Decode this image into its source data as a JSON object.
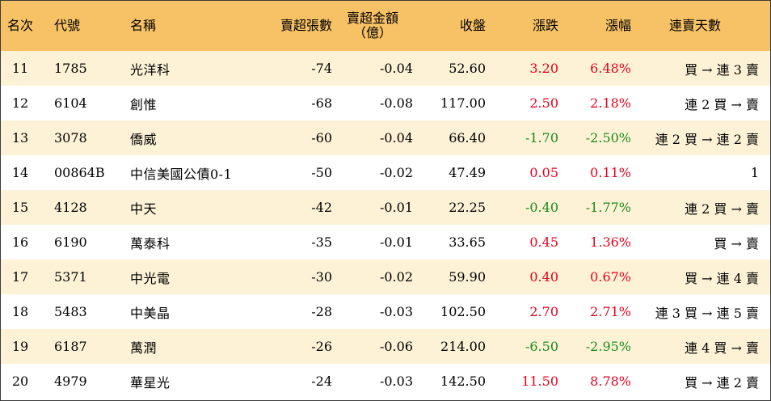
{
  "headers": {
    "rank": "名次",
    "code": "代號",
    "name": "名稱",
    "sell_volume": "賣超張數",
    "sell_amount_line1": "賣超金額",
    "sell_amount_line2": "（億）",
    "close": "收盤",
    "change": "漲跌",
    "change_pct": "漲幅",
    "streak": "連賣天數"
  },
  "colors": {
    "header_bg": "#f7c266",
    "odd_row_bg": "#fdf2d6",
    "up": "#e8001c",
    "down": "#1a8a1a"
  },
  "rows": [
    {
      "rank": "11",
      "code": "1785",
      "name": "光洋科",
      "sell_volume": "-74",
      "sell_amount": "-0.04",
      "close": "52.60",
      "change": "3.20",
      "change_pct": "6.48%",
      "direction": "up",
      "streak": "買 → 連 3 賣"
    },
    {
      "rank": "12",
      "code": "6104",
      "name": "創惟",
      "sell_volume": "-68",
      "sell_amount": "-0.08",
      "close": "117.00",
      "change": "2.50",
      "change_pct": "2.18%",
      "direction": "up",
      "streak": "連 2 買 → 賣"
    },
    {
      "rank": "13",
      "code": "3078",
      "name": "僑威",
      "sell_volume": "-60",
      "sell_amount": "-0.04",
      "close": "66.40",
      "change": "-1.70",
      "change_pct": "-2.50%",
      "direction": "down",
      "streak": "連 2 買 → 連 2 賣"
    },
    {
      "rank": "14",
      "code": "00864B",
      "name": "中信美國公債0-1",
      "sell_volume": "-50",
      "sell_amount": "-0.02",
      "close": "47.49",
      "change": "0.05",
      "change_pct": "0.11%",
      "direction": "up",
      "streak": "1"
    },
    {
      "rank": "15",
      "code": "4128",
      "name": "中天",
      "sell_volume": "-42",
      "sell_amount": "-0.01",
      "close": "22.25",
      "change": "-0.40",
      "change_pct": "-1.77%",
      "direction": "down",
      "streak": "連 2 買 → 賣"
    },
    {
      "rank": "16",
      "code": "6190",
      "name": "萬泰科",
      "sell_volume": "-35",
      "sell_amount": "-0.01",
      "close": "33.65",
      "change": "0.45",
      "change_pct": "1.36%",
      "direction": "up",
      "streak": "買 → 賣"
    },
    {
      "rank": "17",
      "code": "5371",
      "name": "中光電",
      "sell_volume": "-30",
      "sell_amount": "-0.02",
      "close": "59.90",
      "change": "0.40",
      "change_pct": "0.67%",
      "direction": "up",
      "streak": "買 → 連 4 賣"
    },
    {
      "rank": "18",
      "code": "5483",
      "name": "中美晶",
      "sell_volume": "-28",
      "sell_amount": "-0.03",
      "close": "102.50",
      "change": "2.70",
      "change_pct": "2.71%",
      "direction": "up",
      "streak": "連 3 買 → 連 5 賣"
    },
    {
      "rank": "19",
      "code": "6187",
      "name": "萬潤",
      "sell_volume": "-26",
      "sell_amount": "-0.06",
      "close": "214.00",
      "change": "-6.50",
      "change_pct": "-2.95%",
      "direction": "down",
      "streak": "連 4 買 → 賣"
    },
    {
      "rank": "20",
      "code": "4979",
      "name": "華星光",
      "sell_volume": "-24",
      "sell_amount": "-0.03",
      "close": "142.50",
      "change": "11.50",
      "change_pct": "8.78%",
      "direction": "up",
      "streak": "買 → 連 2 賣"
    }
  ]
}
